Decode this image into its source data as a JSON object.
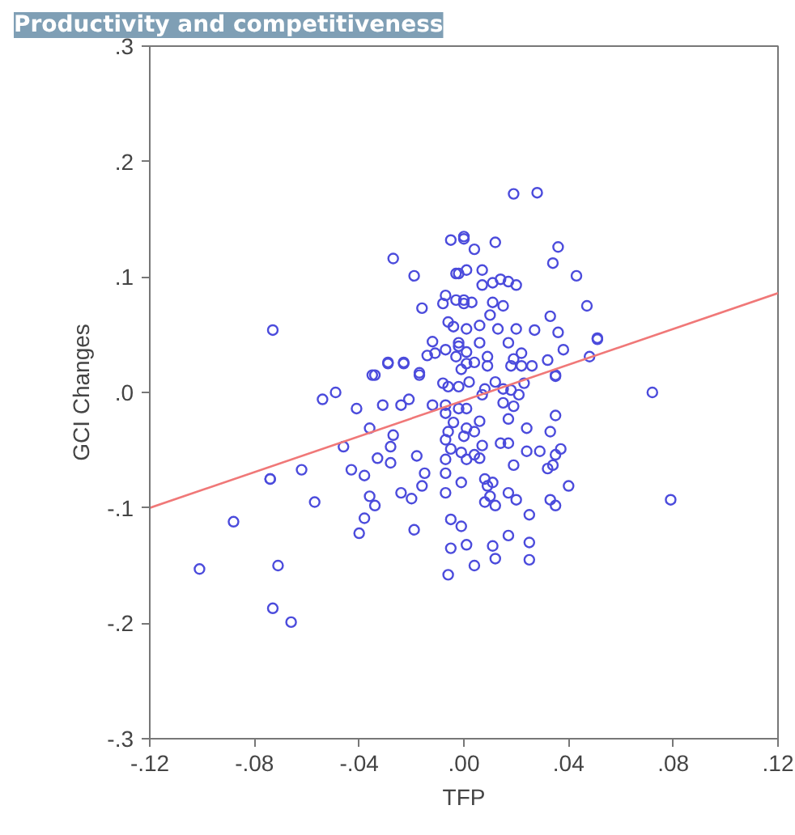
{
  "chart_data": {
    "type": "scatter",
    "title": "Productivity and competitiveness",
    "xlabel": "TFP",
    "ylabel": "GCI Changes",
    "xlim": [
      -0.12,
      0.12
    ],
    "ylim": [
      -0.3,
      0.3
    ],
    "xticks": [
      {
        "value": -0.12,
        "label": "-.12"
      },
      {
        "value": -0.08,
        "label": "-.08"
      },
      {
        "value": -0.04,
        "label": "-.04"
      },
      {
        "value": 0,
        "label": ".00"
      },
      {
        "value": 0.04,
        "label": ".04"
      },
      {
        "value": 0.08,
        "label": ".08"
      },
      {
        "value": 0.12,
        "label": ".12"
      }
    ],
    "yticks": [
      {
        "value": -0.3,
        "label": "-.3"
      },
      {
        "value": -0.2,
        "label": "-.2"
      },
      {
        "value": -0.1,
        "label": "-.1"
      },
      {
        "value": 0,
        "label": ".0"
      },
      {
        "value": 0.1,
        "label": ".1"
      },
      {
        "value": 0.2,
        "label": ".2"
      },
      {
        "value": 0.3,
        "label": ".3"
      }
    ],
    "grid": false,
    "series": [
      {
        "marker": "circle",
        "color": "#4b4bdc",
        "x": [
          -0.101,
          -0.088,
          -0.074,
          -0.074,
          -0.073,
          -0.071,
          -0.066,
          -0.062,
          -0.057,
          -0.054,
          -0.049,
          -0.046,
          -0.043,
          -0.041,
          -0.04,
          -0.038,
          -0.038,
          -0.036,
          -0.036,
          -0.034,
          -0.034,
          -0.033,
          -0.031,
          -0.029,
          -0.028,
          -0.028,
          -0.027,
          -0.024,
          -0.024,
          -0.023,
          -0.021,
          -0.02,
          -0.019,
          -0.018,
          -0.017,
          -0.016,
          -0.015,
          -0.012,
          -0.008,
          -0.007,
          -0.007,
          -0.007,
          -0.007,
          -0.007,
          -0.007,
          -0.006,
          -0.006,
          -0.006,
          -0.005,
          -0.005,
          -0.005,
          -0.004,
          -0.002,
          -0.002,
          -0.001,
          -0.001,
          -0.001,
          -0.001,
          0.0,
          0.001,
          0.001,
          0.001,
          0.001,
          0.001,
          0.002,
          0.004,
          0.004,
          0.004,
          0.006,
          0.006,
          0.007,
          0.007,
          0.008,
          0.008,
          0.008,
          0.009,
          0.009,
          0.01,
          0.011,
          0.011,
          0.012,
          0.012,
          0.012,
          0.014,
          0.015,
          0.015,
          0.017,
          0.017,
          0.017,
          0.017,
          0.018,
          0.018,
          0.019,
          0.019,
          0.02,
          0.021,
          0.022,
          0.023,
          0.024,
          0.024,
          0.025,
          0.025,
          0.025,
          0.026,
          0.029,
          0.032,
          0.033,
          0.033,
          0.034,
          0.035,
          0.035,
          0.035,
          0.035,
          0.037,
          0.04,
          0.072,
          0.079,
          -0.005,
          0.0,
          -0.027,
          -0.019,
          -0.003,
          -0.016,
          -0.007,
          -0.008,
          -0.003,
          0.0,
          -0.073,
          -0.006,
          -0.004,
          -0.012,
          -0.002,
          -0.007,
          -0.011,
          -0.014,
          -0.029,
          -0.023,
          -0.017,
          -0.035,
          -0.003,
          0.001,
          0.019,
          0.028,
          0.036,
          0.034,
          0.043,
          0.047,
          0.0,
          0.012,
          0.004,
          -0.002,
          0.001,
          0.007,
          0.007,
          0.011,
          0.014,
          0.017,
          0.02,
          0.0,
          0.003,
          0.011,
          0.015,
          0.033,
          0.036,
          0.027,
          0.02,
          0.01,
          0.006,
          0.001,
          0.013,
          0.017,
          0.006,
          -0.002,
          0.038,
          0.051,
          0.051,
          0.048,
          0.032,
          0.022,
          0.019,
          0.009,
          0.004,
          0.035
        ],
        "values": [
          -0.153,
          -0.112,
          -0.075,
          -0.075,
          -0.187,
          -0.15,
          -0.199,
          -0.067,
          -0.095,
          -0.006,
          0.0,
          -0.047,
          -0.067,
          -0.014,
          -0.122,
          -0.072,
          -0.109,
          -0.031,
          -0.09,
          -0.098,
          0.015,
          -0.057,
          -0.011,
          0.025,
          -0.047,
          -0.061,
          -0.037,
          -0.011,
          -0.087,
          0.025,
          -0.006,
          -0.092,
          -0.119,
          -0.055,
          0.015,
          -0.081,
          -0.07,
          -0.011,
          0.008,
          -0.041,
          -0.058,
          -0.07,
          -0.087,
          -0.018,
          -0.011,
          -0.034,
          -0.158,
          0.005,
          -0.049,
          -0.11,
          -0.135,
          -0.026,
          0.005,
          -0.014,
          -0.078,
          -0.116,
          -0.052,
          0.02,
          -0.038,
          -0.132,
          -0.058,
          -0.031,
          -0.014,
          0.025,
          0.009,
          -0.054,
          -0.034,
          -0.15,
          -0.057,
          -0.025,
          -0.046,
          -0.002,
          -0.075,
          -0.095,
          0.003,
          -0.081,
          0.023,
          -0.09,
          -0.078,
          -0.133,
          0.009,
          -0.098,
          -0.144,
          -0.044,
          -0.009,
          0.003,
          -0.023,
          -0.044,
          -0.087,
          -0.124,
          0.002,
          0.023,
          -0.063,
          -0.012,
          -0.093,
          -0.002,
          0.023,
          0.008,
          -0.031,
          -0.051,
          -0.106,
          -0.13,
          -0.145,
          0.023,
          -0.051,
          -0.066,
          -0.034,
          -0.093,
          -0.063,
          0.014,
          -0.02,
          -0.054,
          -0.098,
          -0.049,
          -0.081,
          0.0,
          -0.093,
          0.132,
          0.133,
          0.116,
          0.101,
          0.103,
          0.073,
          0.084,
          0.077,
          0.08,
          0.077,
          0.054,
          0.061,
          0.057,
          0.044,
          0.043,
          0.037,
          0.034,
          0.032,
          0.026,
          0.026,
          0.017,
          0.015,
          0.031,
          0.035,
          0.172,
          0.173,
          0.126,
          0.112,
          0.101,
          0.075,
          0.135,
          0.13,
          0.124,
          0.103,
          0.106,
          0.106,
          0.093,
          0.095,
          0.098,
          0.096,
          0.093,
          0.08,
          0.078,
          0.078,
          0.075,
          0.066,
          0.052,
          0.054,
          0.055,
          0.067,
          0.058,
          0.055,
          0.055,
          0.043,
          0.043,
          0.04,
          0.037,
          0.046,
          0.047,
          0.031,
          0.028,
          0.034,
          0.029,
          0.031,
          0.026,
          0.015
        ]
      },
      {
        "type": "line",
        "color": "#f07878",
        "x": [
          -0.12,
          0.12
        ],
        "values": [
          -0.1,
          0.086
        ]
      }
    ]
  }
}
